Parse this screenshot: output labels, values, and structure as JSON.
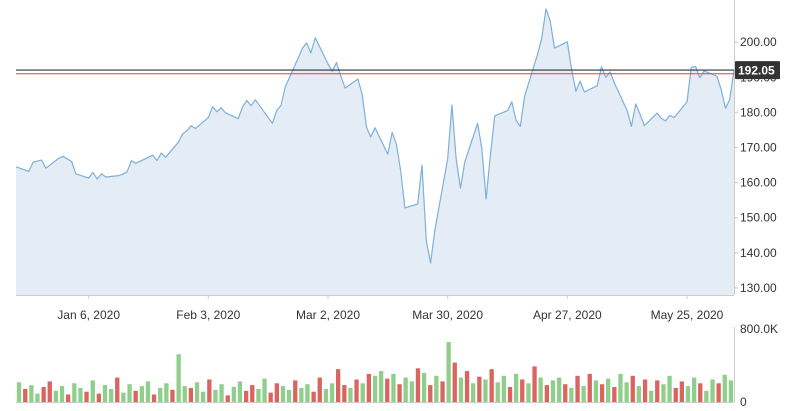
{
  "chart_data": {
    "type": "area",
    "price": {
      "x_ticks": [
        "Jan 6, 2020",
        "Feb 3, 2020",
        "Mar 2, 2020",
        "Mar 30, 2020",
        "Apr 27, 2020",
        "May 25, 2020"
      ],
      "y_ticks": [
        "200.00",
        "190.00",
        "180.00",
        "170.00",
        "160.00",
        "150.00",
        "140.00",
        "130.00"
      ],
      "ylim": [
        128,
        212
      ],
      "current_price": 192.05,
      "current_label": "192.05",
      "reference_line": 191.0,
      "line_color": "#7eb0d8",
      "fill_color": "#e4edf5",
      "current_line_color": "#333333",
      "reference_line_color": "#c0504d",
      "start_date": "2019-12-20",
      "end_date": "2020-06-05",
      "points": [
        [
          "2019-12-20",
          164.5
        ],
        [
          "2019-12-23",
          163.2
        ],
        [
          "2019-12-24",
          165.8
        ],
        [
          "2019-12-26",
          166.4
        ],
        [
          "2019-12-27",
          164.1
        ],
        [
          "2019-12-30",
          166.9
        ],
        [
          "2019-12-31",
          167.5
        ],
        [
          "2020-01-02",
          166.0
        ],
        [
          "2020-01-03",
          162.5
        ],
        [
          "2020-01-06",
          161.3
        ],
        [
          "2020-01-07",
          162.9
        ],
        [
          "2020-01-08",
          161.0
        ],
        [
          "2020-01-09",
          162.5
        ],
        [
          "2020-01-10",
          161.6
        ],
        [
          "2020-01-13",
          162.0
        ],
        [
          "2020-01-14",
          162.4
        ],
        [
          "2020-01-15",
          163.1
        ],
        [
          "2020-01-16",
          166.2
        ],
        [
          "2020-01-17",
          165.5
        ],
        [
          "2020-01-21",
          167.8
        ],
        [
          "2020-01-22",
          166.3
        ],
        [
          "2020-01-23",
          168.4
        ],
        [
          "2020-01-24",
          167.2
        ],
        [
          "2020-01-27",
          171.5
        ],
        [
          "2020-01-28",
          173.9
        ],
        [
          "2020-01-29",
          174.8
        ],
        [
          "2020-01-30",
          176.2
        ],
        [
          "2020-01-31",
          175.4
        ],
        [
          "2020-02-03",
          178.5
        ],
        [
          "2020-02-04",
          181.6
        ],
        [
          "2020-02-05",
          180.2
        ],
        [
          "2020-02-06",
          181.3
        ],
        [
          "2020-02-07",
          179.9
        ],
        [
          "2020-02-10",
          178.2
        ],
        [
          "2020-02-11",
          181.5
        ],
        [
          "2020-02-12",
          183.4
        ],
        [
          "2020-02-13",
          181.9
        ],
        [
          "2020-02-14",
          183.6
        ],
        [
          "2020-02-18",
          176.9
        ],
        [
          "2020-02-19",
          180.5
        ],
        [
          "2020-02-20",
          182.0
        ],
        [
          "2020-02-21",
          187.3
        ],
        [
          "2020-02-24",
          195.4
        ],
        [
          "2020-02-25",
          198.2
        ],
        [
          "2020-02-26",
          199.8
        ],
        [
          "2020-02-27",
          196.9
        ],
        [
          "2020-02-28",
          201.3
        ],
        [
          "2020-03-02",
          193.8
        ],
        [
          "2020-03-03",
          191.7
        ],
        [
          "2020-03-04",
          194.2
        ],
        [
          "2020-03-05",
          190.4
        ],
        [
          "2020-03-06",
          186.9
        ],
        [
          "2020-03-09",
          189.5
        ],
        [
          "2020-03-10",
          185.1
        ],
        [
          "2020-03-11",
          175.8
        ],
        [
          "2020-03-12",
          173.0
        ],
        [
          "2020-03-13",
          175.6
        ],
        [
          "2020-03-16",
          168.1
        ],
        [
          "2020-03-17",
          174.3
        ],
        [
          "2020-03-18",
          170.9
        ],
        [
          "2020-03-19",
          163.5
        ],
        [
          "2020-03-20",
          152.8
        ],
        [
          "2020-03-23",
          153.9
        ],
        [
          "2020-03-24",
          165.0
        ],
        [
          "2020-03-25",
          143.4
        ],
        [
          "2020-03-26",
          137.1
        ],
        [
          "2020-03-27",
          146.4
        ],
        [
          "2020-03-30",
          166.8
        ],
        [
          "2020-03-31",
          182.1
        ],
        [
          "2020-04-01",
          166.6
        ],
        [
          "2020-04-02",
          158.4
        ],
        [
          "2020-04-03",
          165.9
        ],
        [
          "2020-04-06",
          176.9
        ],
        [
          "2020-04-07",
          169.8
        ],
        [
          "2020-04-08",
          155.3
        ],
        [
          "2020-04-09",
          167.9
        ],
        [
          "2020-04-10",
          179.0
        ],
        [
          "2020-04-13",
          180.5
        ],
        [
          "2020-04-14",
          183.0
        ],
        [
          "2020-04-15",
          177.8
        ],
        [
          "2020-04-16",
          176.0
        ],
        [
          "2020-04-17",
          184.6
        ],
        [
          "2020-04-20",
          196.4
        ],
        [
          "2020-04-21",
          201.1
        ],
        [
          "2020-04-22",
          209.5
        ],
        [
          "2020-04-23",
          206.0
        ],
        [
          "2020-04-24",
          198.3
        ],
        [
          "2020-04-27",
          200.1
        ],
        [
          "2020-04-28",
          192.3
        ],
        [
          "2020-04-29",
          186.0
        ],
        [
          "2020-04-30",
          188.9
        ],
        [
          "2020-05-01",
          185.8
        ],
        [
          "2020-05-04",
          187.6
        ],
        [
          "2020-05-05",
          193.0
        ],
        [
          "2020-05-06",
          190.0
        ],
        [
          "2020-05-07",
          191.5
        ],
        [
          "2020-05-08",
          188.4
        ],
        [
          "2020-05-11",
          180.5
        ],
        [
          "2020-05-12",
          176.0
        ],
        [
          "2020-05-13",
          182.4
        ],
        [
          "2020-05-14",
          179.5
        ],
        [
          "2020-05-15",
          176.2
        ],
        [
          "2020-05-18",
          179.8
        ],
        [
          "2020-05-19",
          178.3
        ],
        [
          "2020-05-20",
          177.6
        ],
        [
          "2020-05-21",
          179.1
        ],
        [
          "2020-05-22",
          178.5
        ],
        [
          "2020-05-25",
          183.0
        ],
        [
          "2020-05-26",
          192.8
        ],
        [
          "2020-05-27",
          193.1
        ],
        [
          "2020-05-28",
          189.9
        ],
        [
          "2020-05-29",
          191.8
        ],
        [
          "2020-06-01",
          190.3
        ],
        [
          "2020-06-02",
          186.5
        ],
        [
          "2020-06-03",
          181.2
        ],
        [
          "2020-06-04",
          183.6
        ],
        [
          "2020-06-05",
          192.1
        ]
      ]
    },
    "volume": {
      "y_ticks": [
        "800.0K",
        "0"
      ],
      "ylim": [
        0,
        800000
      ],
      "up_color": "#8fce8b",
      "down_color": "#d96460",
      "bars": [
        [
          210000,
          "up"
        ],
        [
          140000,
          "down"
        ],
        [
          180000,
          "up"
        ],
        [
          90000,
          "up"
        ],
        [
          160000,
          "down"
        ],
        [
          220000,
          "down"
        ],
        [
          120000,
          "up"
        ],
        [
          170000,
          "up"
        ],
        [
          80000,
          "down"
        ],
        [
          200000,
          "up"
        ],
        [
          150000,
          "up"
        ],
        [
          110000,
          "down"
        ],
        [
          230000,
          "up"
        ],
        [
          90000,
          "down"
        ],
        [
          180000,
          "up"
        ],
        [
          140000,
          "up"
        ],
        [
          260000,
          "down"
        ],
        [
          100000,
          "up"
        ],
        [
          190000,
          "up"
        ],
        [
          120000,
          "down"
        ],
        [
          170000,
          "up"
        ],
        [
          220000,
          "up"
        ],
        [
          80000,
          "down"
        ],
        [
          150000,
          "up"
        ],
        [
          200000,
          "up"
        ],
        [
          130000,
          "down"
        ],
        [
          510000,
          "up"
        ],
        [
          170000,
          "up"
        ],
        [
          150000,
          "down"
        ],
        [
          210000,
          "up"
        ],
        [
          110000,
          "up"
        ],
        [
          240000,
          "down"
        ],
        [
          130000,
          "up"
        ],
        [
          190000,
          "up"
        ],
        [
          70000,
          "down"
        ],
        [
          160000,
          "up"
        ],
        [
          220000,
          "up"
        ],
        [
          120000,
          "down"
        ],
        [
          180000,
          "down"
        ],
        [
          140000,
          "up"
        ],
        [
          250000,
          "up"
        ],
        [
          100000,
          "down"
        ],
        [
          200000,
          "down"
        ],
        [
          170000,
          "up"
        ],
        [
          130000,
          "up"
        ],
        [
          230000,
          "down"
        ],
        [
          150000,
          "up"
        ],
        [
          190000,
          "up"
        ],
        [
          110000,
          "down"
        ],
        [
          260000,
          "down"
        ],
        [
          140000,
          "up"
        ],
        [
          200000,
          "up"
        ],
        [
          350000,
          "down"
        ],
        [
          180000,
          "down"
        ],
        [
          150000,
          "up"
        ],
        [
          240000,
          "down"
        ],
        [
          200000,
          "up"
        ],
        [
          300000,
          "down"
        ],
        [
          280000,
          "up"
        ],
        [
          330000,
          "up"
        ],
        [
          250000,
          "down"
        ],
        [
          300000,
          "up"
        ],
        [
          190000,
          "down"
        ],
        [
          260000,
          "up"
        ],
        [
          220000,
          "up"
        ],
        [
          360000,
          "down"
        ],
        [
          310000,
          "up"
        ],
        [
          180000,
          "down"
        ],
        [
          280000,
          "up"
        ],
        [
          220000,
          "down"
        ],
        [
          640000,
          "up"
        ],
        [
          420000,
          "down"
        ],
        [
          260000,
          "up"
        ],
        [
          330000,
          "down"
        ],
        [
          200000,
          "up"
        ],
        [
          270000,
          "down"
        ],
        [
          240000,
          "up"
        ],
        [
          350000,
          "down"
        ],
        [
          210000,
          "up"
        ],
        [
          280000,
          "up"
        ],
        [
          160000,
          "down"
        ],
        [
          300000,
          "up"
        ],
        [
          240000,
          "down"
        ],
        [
          200000,
          "up"
        ],
        [
          380000,
          "down"
        ],
        [
          260000,
          "up"
        ],
        [
          180000,
          "down"
        ],
        [
          230000,
          "up"
        ],
        [
          260000,
          "up"
        ],
        [
          190000,
          "down"
        ],
        [
          150000,
          "up"
        ],
        [
          280000,
          "down"
        ],
        [
          170000,
          "up"
        ],
        [
          300000,
          "down"
        ],
        [
          230000,
          "up"
        ],
        [
          190000,
          "down"
        ],
        [
          250000,
          "up"
        ],
        [
          160000,
          "down"
        ],
        [
          300000,
          "up"
        ],
        [
          210000,
          "up"
        ],
        [
          280000,
          "down"
        ],
        [
          170000,
          "up"
        ],
        [
          240000,
          "down"
        ],
        [
          120000,
          "up"
        ],
        [
          230000,
          "down"
        ],
        [
          190000,
          "up"
        ],
        [
          280000,
          "up"
        ],
        [
          150000,
          "down"
        ],
        [
          220000,
          "down"
        ],
        [
          170000,
          "up"
        ],
        [
          260000,
          "up"
        ],
        [
          200000,
          "down"
        ],
        [
          120000,
          "up"
        ],
        [
          240000,
          "up"
        ],
        [
          200000,
          "down"
        ],
        [
          290000,
          "up"
        ],
        [
          230000,
          "up"
        ]
      ]
    }
  }
}
